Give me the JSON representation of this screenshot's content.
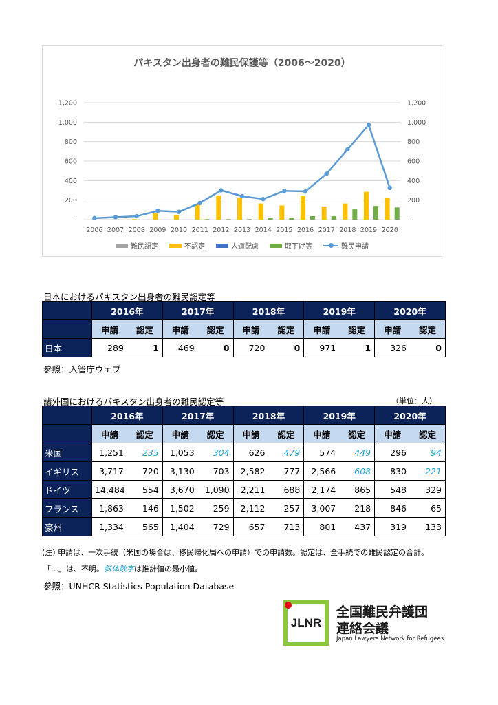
{
  "chart_data": {
    "type": "bar+line",
    "title": "パキスタン出身者の難民保護等（2006～2020）",
    "categories": [
      "2006",
      "2007",
      "2008",
      "2009",
      "2010",
      "2011",
      "2012",
      "2013",
      "2014",
      "2015",
      "2016",
      "2017",
      "2018",
      "2019",
      "2020"
    ],
    "ylim": [
      0,
      1200
    ],
    "yticks": [
      "-",
      "200",
      "400",
      "600",
      "800",
      "1,000",
      "1,200"
    ],
    "y2ticks": [
      "-",
      "200",
      "400",
      "600",
      "800",
      "1,000",
      "1,200"
    ],
    "series": [
      {
        "name": "難民認定",
        "type": "bar",
        "color": "#a5a5a5",
        "values": [
          0,
          0,
          0,
          0,
          0,
          0,
          0,
          0,
          0,
          0,
          1,
          0,
          0,
          1,
          0
        ]
      },
      {
        "name": "不認定",
        "type": "bar",
        "color": "#ffc000",
        "values": [
          0,
          0,
          5,
          65,
          50,
          155,
          248,
          225,
          165,
          145,
          240,
          135,
          165,
          285,
          220
        ]
      },
      {
        "name": "人道配慮",
        "type": "bar",
        "color": "#4472c4",
        "values": [
          0,
          0,
          0,
          0,
          0,
          0,
          0,
          0,
          0,
          0,
          0,
          0,
          0,
          0,
          0
        ]
      },
      {
        "name": "取下げ等",
        "type": "bar",
        "color": "#70ad47",
        "values": [
          0,
          0,
          0,
          0,
          0,
          5,
          5,
          5,
          20,
          20,
          35,
          35,
          105,
          140,
          125
        ]
      },
      {
        "name": "難民申請",
        "type": "line",
        "color": "#5b9bd5",
        "values": [
          15,
          25,
          35,
          90,
          80,
          170,
          300,
          240,
          210,
          295,
          289,
          469,
          720,
          971,
          326
        ]
      }
    ],
    "legend": "bottom",
    "grid": true
  },
  "japan_table": {
    "title": "日本におけるパキスタン出身者の難民認定等",
    "years": [
      "2016年",
      "2017年",
      "2018年",
      "2019年",
      "2020年"
    ],
    "sub_apply": "申請",
    "sub_recog": "認定",
    "rows": [
      {
        "name": "日本",
        "values": [
          "289",
          "1",
          "469",
          "0",
          "720",
          "0",
          "971",
          "1",
          "326",
          "0"
        ]
      }
    ],
    "reference": "参照：入管庁ウェブ"
  },
  "foreign_table": {
    "title": "諸外国におけるパキスタン出身者の難民認定等",
    "unit": "（単位：人）",
    "years": [
      "2016年",
      "2017年",
      "2018年",
      "2019年",
      "2020年"
    ],
    "sub_apply": "申請",
    "sub_recog": "認定",
    "rows": [
      {
        "name": "米国",
        "values": [
          "1,251",
          "235",
          "1,053",
          "304",
          "626",
          "479",
          "574",
          "449",
          "296",
          "94"
        ],
        "estimated": [
          1,
          3,
          5,
          7,
          9
        ]
      },
      {
        "name": "イギリス",
        "values": [
          "3,717",
          "720",
          "3,130",
          "703",
          "2,582",
          "777",
          "2,566",
          "608",
          "830",
          "221"
        ],
        "estimated": [
          7,
          9
        ]
      },
      {
        "name": "ドイツ",
        "values": [
          "14,484",
          "554",
          "3,670",
          "1,090",
          "2,211",
          "688",
          "2,174",
          "865",
          "548",
          "329"
        ],
        "estimated": []
      },
      {
        "name": "フランス",
        "values": [
          "1,863",
          "146",
          "1,502",
          "259",
          "2,112",
          "257",
          "3,007",
          "218",
          "846",
          "65"
        ],
        "estimated": []
      },
      {
        "name": "豪州",
        "values": [
          "1,334",
          "565",
          "1,404",
          "729",
          "657",
          "713",
          "801",
          "437",
          "319",
          "133"
        ],
        "estimated": []
      }
    ]
  },
  "notes": {
    "note1": "(注) 申請は、一次手続（米国の場合は、移民帰化局への申請）での申請数。認定は、全手続での難民認定の合計。",
    "note2_a": "「…」は、不明。",
    "note2_b": "斜体数字",
    "note2_c": "は推計値の最小値。",
    "reference": "参照：UNHCR Statistics Population Database"
  },
  "logo": {
    "mark": "JLNR",
    "org_line1": "全国難民弁護団",
    "org_line2": "連絡会議",
    "org_en": "Japan Lawyers Network for Refugees"
  },
  "colors": {
    "navy": "#0c2359",
    "light_blue": "#c5d9f1",
    "estimate_blue": "#1fa6d6",
    "logo_green": "#8cc63f",
    "logo_red": "#e30613"
  }
}
